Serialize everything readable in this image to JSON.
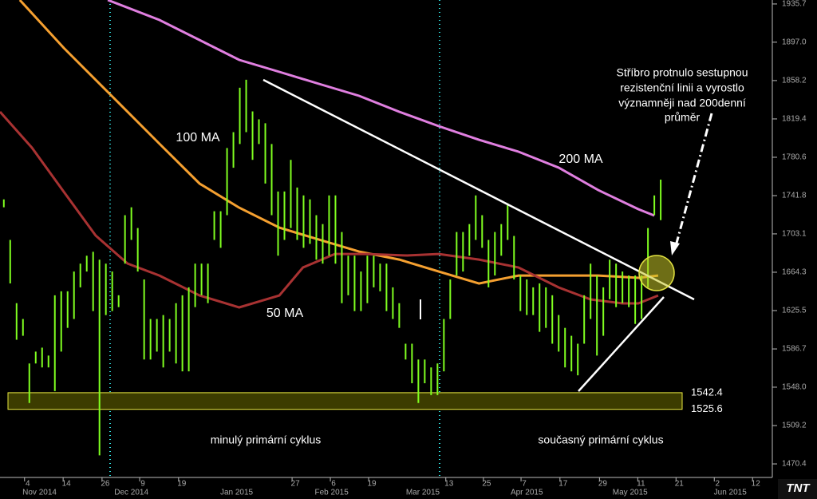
{
  "chart_data": {
    "type": "ohlc",
    "xlim": [
      -0.6,
      120.5
    ],
    "ylim": [
      1456.7,
      1939.7
    ],
    "yticks": [
      1935.7,
      {
        "value": 1897,
        "label": "1897.0"
      },
      1858.2,
      1819.4,
      1780.6,
      1741.8,
      1703.1,
      1664.3,
      1625.5,
      1586.7,
      {
        "value": 1548,
        "label": "1548.0"
      },
      1509.2,
      1470.4
    ],
    "xticks": [
      {
        "value": 3.75,
        "label": "4"
      },
      {
        "value": 9.8,
        "label": "14"
      },
      {
        "value": 15.9,
        "label": "26"
      },
      {
        "value": 21.8,
        "label": "9"
      },
      {
        "value": 27.9,
        "label": "19"
      },
      {
        "value": 45.7,
        "label": "27"
      },
      {
        "value": 51.7,
        "label": "6"
      },
      {
        "value": 57.7,
        "label": "19"
      },
      {
        "value": 69.8,
        "label": "13"
      },
      {
        "value": 75.7,
        "label": "25"
      },
      {
        "value": 81.6,
        "label": "7"
      },
      {
        "value": 87.7,
        "label": "17"
      },
      {
        "value": 93.9,
        "label": "29"
      },
      {
        "value": 99.9,
        "label": "11"
      },
      {
        "value": 105.9,
        "label": "21"
      },
      {
        "value": 111.9,
        "label": "2"
      },
      {
        "value": 117.9,
        "label": "12"
      }
    ],
    "month_ticks": [
      {
        "value": 5.6,
        "label": "Nov 2014"
      },
      {
        "value": 20,
        "label": "Dec 2014"
      },
      {
        "value": 36.5,
        "label": "Jan 2015"
      },
      {
        "value": 51.4,
        "label": "Feb 2015"
      },
      {
        "value": 65.7,
        "label": "Mar 2015"
      },
      {
        "value": 82,
        "label": "Apr 2015"
      },
      {
        "value": 98.2,
        "label": "May 2015"
      },
      {
        "value": 113.9,
        "label": "Jun 2015"
      }
    ],
    "bar_color": "#80ff20",
    "high": [
      1738,
      1697,
      1633,
      1617,
      1572,
      1584,
      1588,
      1580,
      1641,
      1645,
      1645,
      1665,
      1673,
      1681,
      1685,
      1677,
      1673,
      1665,
      1641,
      1722,
      1730,
      1709,
      1657,
      1617,
      1617,
      1621,
      1617,
      1633,
      1641,
      1649,
      1673,
      1673,
      1673,
      1726,
      1726,
      1790,
      1806,
      1851,
      1859,
      1827,
      1819,
      1815,
      1794,
      1746,
      1746,
      1778,
      1750,
      1742,
      1738,
      1722,
      1713,
      1742,
      1742,
      1705,
      1681,
      1681,
      1665,
      1681,
      1681,
      1673,
      1673,
      1649,
      1633,
      1592,
      1592,
      1576,
      1576,
      1568,
      1572,
      1617,
      1657,
      1705,
      1705,
      1713,
      1742,
      1722,
      1697,
      1705,
      1713,
      1734,
      1701,
      1661,
      1657,
      1649,
      1653,
      1649,
      1641,
      1621,
      1608,
      1600,
      1592,
      1641,
      1673,
      1661,
      1649,
      1677,
      1673,
      1665,
      1661,
      1661,
      1661,
      1709,
      1742,
      1758
    ],
    "low": [
      1730,
      1653,
      1596,
      1600,
      1532,
      1572,
      1568,
      1568,
      1544,
      1584,
      1608,
      1617,
      1649,
      1665,
      1625,
      1479,
      1621,
      1625,
      1629,
      1673,
      1697,
      1665,
      1576,
      1576,
      1584,
      1568,
      1584,
      1572,
      1564,
      1564,
      1629,
      1641,
      1633,
      1697,
      1689,
      1722,
      1770,
      1794,
      1806,
      1778,
      1794,
      1754,
      1722,
      1681,
      1697,
      1709,
      1697,
      1689,
      1693,
      1677,
      1673,
      1681,
      1673,
      1633,
      1641,
      1625,
      1625,
      1633,
      1649,
      1645,
      1625,
      1617,
      1608,
      1576,
      1552,
      1532,
      1552,
      1540,
      1540,
      1564,
      1617,
      1661,
      1665,
      1681,
      1697,
      1689,
      1649,
      1661,
      1681,
      1697,
      1657,
      1625,
      1621,
      1621,
      1604,
      1608,
      1592,
      1584,
      1568,
      1564,
      1560,
      1592,
      1617,
      1580,
      1600,
      1637,
      1629,
      1633,
      1629,
      1612,
      1617,
      1649,
      1722,
      1717
    ],
    "series": [
      {
        "name": "200 MA",
        "color": "#e07fe0",
        "x": [
          16.3,
          24.4,
          31.9,
          36.9,
          43.2,
          49.4,
          55.7,
          62,
          68.2,
          74.5,
          80.7,
          87,
          93.2,
          99.5,
          102
        ],
        "values": [
          1939.7,
          1919.5,
          1895.3,
          1879.1,
          1867,
          1854.9,
          1842.8,
          1826.6,
          1812.1,
          1798.3,
          1786.2,
          1770.1,
          1747.4,
          1728.1,
          1721.6
        ]
      },
      {
        "name": "100 MA",
        "color": "#f5a030",
        "x": [
          2.5,
          9.4,
          16.9,
          24.4,
          30.7,
          36.9,
          43.2,
          49.4,
          55.7,
          62,
          68.2,
          74.5,
          80.7,
          87,
          93.2,
          99.5,
          102.6
        ],
        "values": [
          1939.7,
          1891.2,
          1842.8,
          1794.3,
          1753.9,
          1729.6,
          1709.4,
          1697.3,
          1685.2,
          1677.1,
          1665,
          1652.9,
          1661,
          1661,
          1661,
          1658.6,
          1661
        ]
      },
      {
        "name": "50 MA",
        "color": "#a83232",
        "x": [
          -0.6,
          4.4,
          9.4,
          14.4,
          19.4,
          24.4,
          30.7,
          36.9,
          43.2,
          46.9,
          51.9,
          56.9,
          63.2,
          68.2,
          74.5,
          80.7,
          87,
          92,
          97,
          99.5,
          102.6
        ],
        "values": [
          1826.6,
          1790.3,
          1745.8,
          1701.4,
          1673.1,
          1661,
          1640.8,
          1628.7,
          1640.8,
          1669.1,
          1682.8,
          1682.8,
          1681.2,
          1682.8,
          1677.1,
          1669.1,
          1648.9,
          1636.8,
          1632.8,
          1632.8,
          1640.8
        ]
      }
    ],
    "band": {
      "high": 1542.4,
      "low": 1525.6
    },
    "annotations": [
      "minulý primární cyklus",
      "současný primární cyklus"
    ],
    "note": [
      "Stříbro protnulo sestupnou",
      "rezistenční linii a vyrostlo",
      "významněji nad 200denní",
      "průměr"
    ],
    "logo": "TNT"
  }
}
